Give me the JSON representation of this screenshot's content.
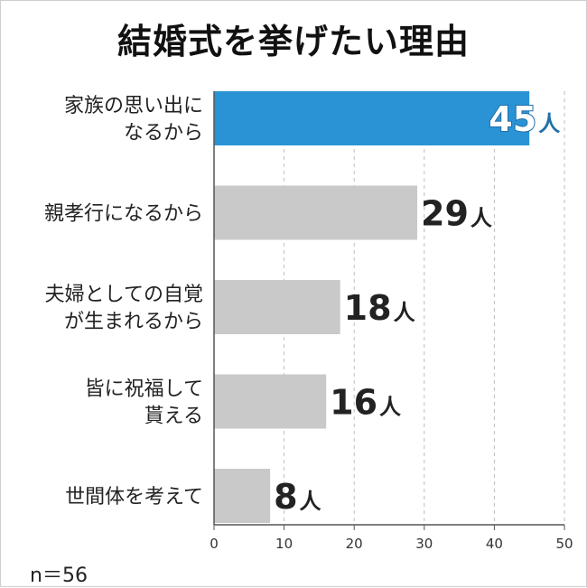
{
  "chart_data": {
    "type": "bar",
    "orientation": "horizontal",
    "title": "結婚式を挙げたい理由",
    "categories": [
      [
        "家族の思い出に",
        "なるから"
      ],
      [
        "親孝行になるから"
      ],
      [
        "夫婦としての自覚",
        "が生まれるから"
      ],
      [
        "皆に祝福して",
        "貰える"
      ],
      [
        "世間体を考えて"
      ]
    ],
    "values": [
      45,
      29,
      18,
      16,
      8
    ],
    "unit": "人",
    "xlim": [
      0,
      50
    ],
    "xticks": [
      0,
      10,
      20,
      30,
      40,
      50
    ],
    "grid": true,
    "highlight_index": 0,
    "note": "n＝56"
  },
  "colors": {
    "highlight_bar": "#2a93d5",
    "bar": "#c9c9c9",
    "value_text": "#222222",
    "highlight_value_text": "#ffffff",
    "highlight_value_stroke": "#1f6fa8",
    "axis": "#555555",
    "grid": "#bdbdbd"
  }
}
